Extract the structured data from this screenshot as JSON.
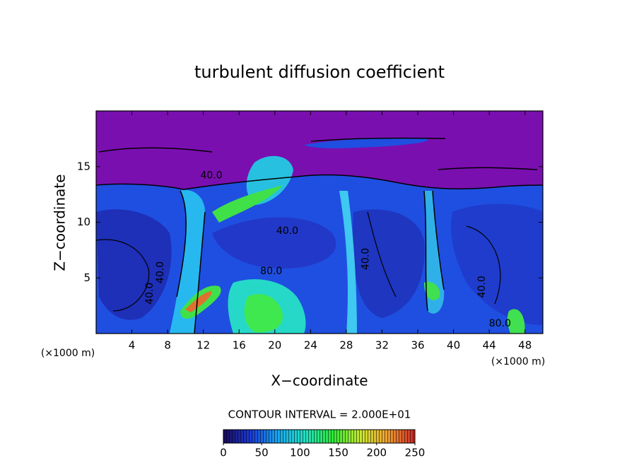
{
  "chart_data": {
    "type": "contour",
    "title": "turbulent diffusion coefficient",
    "x_label": "X−coordinate",
    "y_label": "Z−coordinate",
    "x_unit_label": "(×1000 m)",
    "y_unit_label": "(×1000 m)",
    "xlim": [
      0,
      50
    ],
    "ylim": [
      0,
      20
    ],
    "xticks": [
      4,
      8,
      12,
      16,
      20,
      24,
      28,
      32,
      36,
      40,
      44,
      48
    ],
    "yticks": [
      5,
      10,
      15
    ],
    "contour_interval_label": "CONTOUR INTERVAL = 2.000E+01",
    "annotations": [
      {
        "text": "40.0",
        "x": 12.9,
        "y": 14.2
      },
      {
        "text": "40.0",
        "x": 21.4,
        "y": 9.2
      },
      {
        "text": "80.0",
        "x": 19.6,
        "y": 5.6
      },
      {
        "text": "40.0",
        "x": 30.2,
        "y": 6.7
      },
      {
        "text": "40.0",
        "x": 7.2,
        "y": 5.5
      },
      {
        "text": "40.0",
        "x": 6.0,
        "y": 3.6
      },
      {
        "text": "40.0",
        "x": 43.2,
        "y": 4.2
      },
      {
        "text": "80.0",
        "x": 45.2,
        "y": 0.9
      }
    ],
    "colorbar": {
      "lim": [
        0,
        250
      ],
      "ticks": [
        0,
        50,
        100,
        150,
        200,
        250
      ],
      "colors": [
        "#1a0a5a",
        "#1a3ad8",
        "#19a8f0",
        "#22e0c0",
        "#2ee838",
        "#c8e830",
        "#f0a030",
        "#d02828"
      ]
    }
  }
}
